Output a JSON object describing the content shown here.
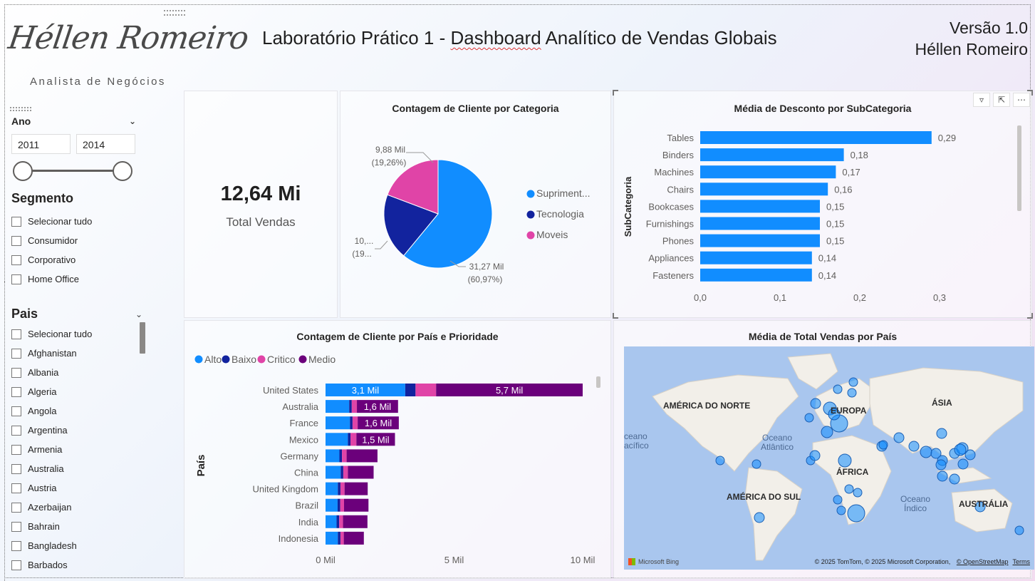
{
  "header": {
    "logo_signature": "Héllen Romeiro",
    "logo_subtitle": "Analista de Negócios",
    "title_part1": "Laboratório Prático 1 - ",
    "title_underlined": "Dashboard",
    "title_part2": " Analítico de Vendas Globais",
    "version_line1": "Versão 1.0",
    "version_line2": "Héllen Romeiro"
  },
  "slicer_ano": {
    "title": "Ano",
    "start": "2011",
    "end": "2014",
    "icon": "chevron-down-icon"
  },
  "slicer_segmento": {
    "title": "Segmento",
    "items": [
      "Selecionar tudo",
      "Consumidor",
      "Corporativo",
      "Home Office"
    ]
  },
  "slicer_pais": {
    "title": "Pais",
    "items": [
      "Selecionar tudo",
      "Afghanistan",
      "Albania",
      "Algeria",
      "Angola",
      "Argentina",
      "Armenia",
      "Australia",
      "Austria",
      "Azerbaijan",
      "Bahrain",
      "Bangladesh",
      "Barbados"
    ]
  },
  "kpi": {
    "value": "12,64 Mi",
    "label": "Total Vendas"
  },
  "colors": {
    "alto": "#118DFF",
    "baixo": "#12239E",
    "critico": "#E044A7",
    "medio": "#6B007B",
    "bar": "#118DFF",
    "pie_suprimentos": "#118DFF",
    "pie_tecnologia": "#12239E",
    "pie_moveis": "#E044A7"
  },
  "pie_chart": {
    "title": "Contagem de Cliente por Categoria",
    "legend": [
      "Supriment...",
      "Tecnologia",
      "Moveis"
    ],
    "slices": [
      {
        "name": "Suprimentos",
        "pct": 60.97
      },
      {
        "name": "Tecnologia",
        "pct": 19.77
      },
      {
        "name": "Moveis",
        "pct": 19.26
      }
    ],
    "labels": {
      "moveis_value": "9,88 Mil",
      "moveis_pct": "(19,26%)",
      "tecnologia_value": "10,...",
      "tecnologia_pct": "(19...",
      "suprimentos_value": "31,27 Mil",
      "suprimentos_pct": "(60,97%)"
    }
  },
  "bar_chart": {
    "title": "Média de Desconto por SubCategoria",
    "ylabel": "SubCategoria",
    "categories": [
      "Tables",
      "Binders",
      "Machines",
      "Chairs",
      "Bookcases",
      "Furnishings",
      "Phones",
      "Appliances",
      "Fasteners"
    ],
    "values": [
      0.29,
      0.18,
      0.17,
      0.16,
      0.15,
      0.15,
      0.15,
      0.14,
      0.14
    ],
    "value_labels": [
      "0,29",
      "0,18",
      "0,17",
      "0,16",
      "0,15",
      "0,15",
      "0,15",
      "0,14",
      "0,14"
    ],
    "xlim": [
      0,
      0.3
    ],
    "ticks": [
      0,
      0.1,
      0.2,
      0.3
    ],
    "tick_labels": [
      "0,0",
      "0,1",
      "0,2",
      "0,3"
    ]
  },
  "stacked_chart": {
    "title": "Contagem de Cliente por País e Prioridade",
    "ylabel": "País",
    "legend": [
      "Alto",
      "Baixo",
      "Critico",
      "Medio"
    ],
    "categories": [
      "United States",
      "Australia",
      "France",
      "Mexico",
      "Germany",
      "China",
      "United Kingdom",
      "Brazil",
      "India",
      "Indonesia"
    ],
    "series": [
      {
        "name": "Alto",
        "values": [
          3100,
          920,
          950,
          870,
          540,
          590,
          480,
          470,
          430,
          480
        ]
      },
      {
        "name": "Baixo",
        "values": [
          400,
          100,
          100,
          100,
          100,
          100,
          100,
          100,
          100,
          100
        ]
      },
      {
        "name": "Critico",
        "values": [
          800,
          200,
          200,
          230,
          180,
          180,
          160,
          150,
          150,
          130
        ]
      },
      {
        "name": "Medio",
        "values": [
          5700,
          1600,
          1600,
          1500,
          1200,
          1000,
          900,
          950,
          950,
          780
        ]
      }
    ],
    "bar_labels": {
      "United States": {
        "Alto": "3,1 Mil",
        "Medio": "5,7 Mil"
      },
      "Australia": {
        "Medio": "1,6 Mil"
      },
      "France": {
        "Medio": "1,6 Mil"
      },
      "Mexico": {
        "Medio": "1,5 Mil"
      }
    },
    "xlim": [
      0,
      10000
    ],
    "ticks": [
      0,
      5000,
      10000
    ],
    "tick_labels": [
      "0 Mil",
      "5 Mil",
      "10 Mil"
    ]
  },
  "map": {
    "title": "Média de Total Vendas por País",
    "labels": [
      "AMÉRICA DO NORTE",
      "EUROPA",
      "ÁSIA",
      "ÁFRICA",
      "AMÉRICA DO SUL",
      "AUSTRÁLIA"
    ],
    "oceans": [
      "Oceano Atlântico",
      "Oceano Pacífico",
      "Oceano Índico"
    ],
    "ocean_pacific_cut": "ceano\nacífico",
    "attribution": "© 2025 TomTom, © 2025 Microsoft Corporation,",
    "osm": "© OpenStreetMap",
    "terms": "Terms",
    "bing": "Microsoft Bing"
  }
}
